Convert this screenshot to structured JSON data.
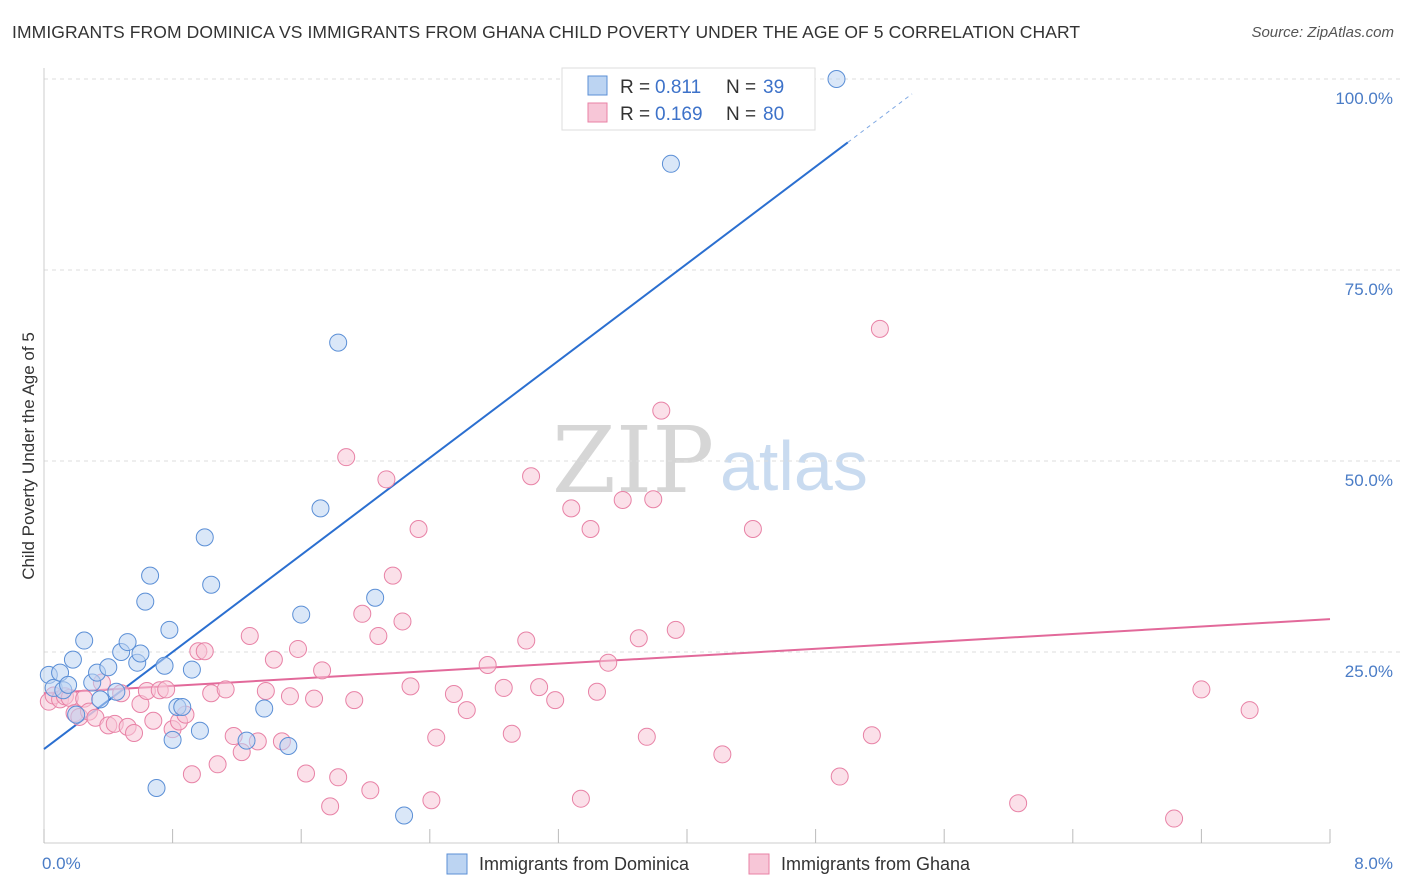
{
  "title": "IMMIGRANTS FROM DOMINICA VS IMMIGRANTS FROM GHANA CHILD POVERTY UNDER THE AGE OF 5 CORRELATION CHART",
  "source": "Source: ZipAtlas.com",
  "watermark": {
    "zip": "ZIP",
    "atlas": "atlas"
  },
  "colors": {
    "dominica": "#5b8fd6",
    "dominica_fill": "#bcd4f2",
    "dominica_line": "#2b6fd0",
    "ghana": "#e882a6",
    "ghana_fill": "#f7c6d7",
    "ghana_line": "#e2699a",
    "tick_text": "#4a7cc6",
    "grid": "#dddddd"
  },
  "legend": {
    "rows": [
      {
        "r_label": "R = ",
        "r_value": "0.811",
        "n_label": "N = ",
        "n_value": "39"
      },
      {
        "r_label": "R = ",
        "r_value": "0.169",
        "n_label": "N = ",
        "n_value": "80"
      }
    ]
  },
  "bottom_legend": [
    "Immigrants from Dominica",
    "Immigrants from Ghana"
  ],
  "chart_data": {
    "type": "scatter",
    "title": "IMMIGRANTS FROM DOMINICA VS IMMIGRANTS FROM GHANA CHILD POVERTY UNDER THE AGE OF 5 CORRELATION CHART",
    "xlabel": "",
    "ylabel": "Child Poverty Under the Age of 5",
    "xlim": [
      0,
      8
    ],
    "ylim": [
      0,
      100
    ],
    "x_tick_labels": [
      "0.0%",
      "8.0%"
    ],
    "y_tick_labels": [
      "100.0%",
      "75.0%",
      "50.0%",
      "25.0%"
    ],
    "y_ticks": [
      100,
      75,
      50,
      25
    ],
    "grid": true,
    "legend_position": "top-center",
    "series": [
      {
        "name": "Immigrants from Dominica",
        "color": "#5b8fd6",
        "R": 0.811,
        "N": 39,
        "trend": {
          "x0": 0,
          "y0": 12.3,
          "x1": 5.0,
          "y1": 91.7,
          "dash_x_end": 5.4
        },
        "points": [
          [
            0.03,
            22.0
          ],
          [
            0.06,
            20.3
          ],
          [
            0.1,
            22.3
          ],
          [
            0.12,
            20.0
          ],
          [
            0.15,
            20.7
          ],
          [
            0.18,
            24.0
          ],
          [
            0.2,
            16.8
          ],
          [
            0.25,
            26.5
          ],
          [
            0.3,
            21.0
          ],
          [
            0.33,
            22.3
          ],
          [
            0.35,
            18.8
          ],
          [
            0.4,
            23.0
          ],
          [
            0.45,
            19.8
          ],
          [
            0.48,
            25.0
          ],
          [
            0.52,
            26.3
          ],
          [
            0.58,
            23.6
          ],
          [
            0.6,
            24.8
          ],
          [
            0.63,
            31.6
          ],
          [
            0.66,
            35.0
          ],
          [
            0.7,
            7.2
          ],
          [
            0.75,
            23.2
          ],
          [
            0.78,
            27.9
          ],
          [
            0.8,
            13.5
          ],
          [
            0.83,
            17.8
          ],
          [
            0.86,
            17.8
          ],
          [
            0.92,
            22.7
          ],
          [
            0.97,
            14.7
          ],
          [
            1.0,
            40.0
          ],
          [
            1.04,
            33.8
          ],
          [
            1.26,
            13.4
          ],
          [
            1.37,
            17.6
          ],
          [
            1.52,
            12.7
          ],
          [
            1.6,
            29.9
          ],
          [
            1.72,
            43.8
          ],
          [
            1.83,
            65.5
          ],
          [
            2.06,
            32.1
          ],
          [
            2.24,
            3.6
          ],
          [
            3.9,
            88.9
          ],
          [
            4.93,
            100.0
          ]
        ]
      },
      {
        "name": "Immigrants from Ghana",
        "color": "#e882a6",
        "R": 0.169,
        "N": 80,
        "trend": {
          "x0": 0,
          "y0": 19.6,
          "x1": 8.0,
          "y1": 29.3
        },
        "points": [
          [
            0.03,
            18.5
          ],
          [
            0.06,
            19.3
          ],
          [
            0.1,
            18.8
          ],
          [
            0.13,
            19.2
          ],
          [
            0.16,
            19.0
          ],
          [
            0.19,
            17.0
          ],
          [
            0.22,
            16.5
          ],
          [
            0.25,
            18.9
          ],
          [
            0.28,
            17.2
          ],
          [
            0.32,
            16.4
          ],
          [
            0.36,
            21.0
          ],
          [
            0.4,
            15.4
          ],
          [
            0.44,
            15.6
          ],
          [
            0.48,
            19.6
          ],
          [
            0.52,
            15.2
          ],
          [
            0.56,
            14.4
          ],
          [
            0.6,
            18.2
          ],
          [
            0.64,
            19.9
          ],
          [
            0.68,
            16.0
          ],
          [
            0.72,
            20.0
          ],
          [
            0.76,
            20.1
          ],
          [
            0.8,
            14.9
          ],
          [
            0.84,
            15.9
          ],
          [
            0.88,
            16.8
          ],
          [
            0.92,
            9.0
          ],
          [
            0.96,
            25.1
          ],
          [
            1.0,
            25.1
          ],
          [
            1.04,
            19.6
          ],
          [
            1.08,
            10.3
          ],
          [
            1.13,
            20.1
          ],
          [
            1.18,
            14.0
          ],
          [
            1.23,
            11.9
          ],
          [
            1.28,
            27.1
          ],
          [
            1.33,
            13.3
          ],
          [
            1.38,
            19.9
          ],
          [
            1.43,
            24.0
          ],
          [
            1.48,
            13.3
          ],
          [
            1.53,
            19.2
          ],
          [
            1.58,
            25.4
          ],
          [
            1.63,
            9.1
          ],
          [
            1.68,
            18.9
          ],
          [
            1.73,
            22.6
          ],
          [
            1.78,
            4.8
          ],
          [
            1.83,
            8.6
          ],
          [
            1.88,
            50.5
          ],
          [
            1.93,
            18.7
          ],
          [
            1.98,
            30.0
          ],
          [
            2.03,
            6.9
          ],
          [
            2.08,
            27.1
          ],
          [
            2.13,
            47.6
          ],
          [
            2.17,
            35.0
          ],
          [
            2.23,
            29.0
          ],
          [
            2.28,
            20.5
          ],
          [
            2.33,
            41.1
          ],
          [
            2.41,
            5.6
          ],
          [
            2.44,
            13.8
          ],
          [
            2.55,
            19.5
          ],
          [
            2.63,
            17.4
          ],
          [
            2.76,
            23.3
          ],
          [
            2.86,
            20.3
          ],
          [
            2.91,
            14.3
          ],
          [
            3.0,
            26.5
          ],
          [
            3.03,
            48.0
          ],
          [
            3.08,
            20.4
          ],
          [
            3.18,
            18.7
          ],
          [
            3.28,
            43.8
          ],
          [
            3.34,
            5.8
          ],
          [
            3.4,
            41.1
          ],
          [
            3.44,
            19.8
          ],
          [
            3.51,
            23.6
          ],
          [
            3.6,
            44.9
          ],
          [
            3.7,
            26.8
          ],
          [
            3.75,
            13.9
          ],
          [
            3.79,
            45.0
          ],
          [
            3.84,
            56.6
          ],
          [
            3.93,
            27.9
          ],
          [
            4.22,
            11.6
          ],
          [
            4.41,
            41.1
          ],
          [
            4.95,
            8.7
          ],
          [
            5.15,
            14.1
          ]
        ],
        "outliers": [
          [
            5.2,
            67.3
          ],
          [
            6.06,
            5.2
          ],
          [
            7.03,
            3.2
          ],
          [
            7.2,
            20.1
          ],
          [
            7.5,
            17.4
          ]
        ]
      }
    ]
  }
}
